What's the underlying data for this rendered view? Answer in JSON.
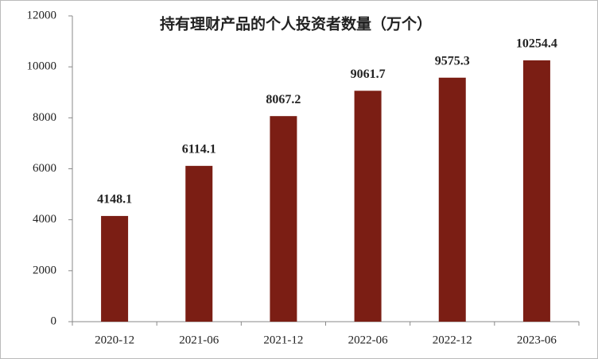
{
  "chart_data": {
    "type": "bar",
    "title": "持有理财产品的个人投资者数量（万个）",
    "categories": [
      "2020-12",
      "2021-06",
      "2021-12",
      "2022-06",
      "2022-12",
      "2023-06"
    ],
    "values": [
      4148.1,
      6114.1,
      8067.2,
      9061.7,
      9575.3,
      10254.4
    ],
    "color": "#7b1e14",
    "ylim": [
      0,
      12000
    ],
    "yticks": [
      0,
      2000,
      4000,
      6000,
      8000,
      10000,
      12000
    ],
    "grid": false
  }
}
